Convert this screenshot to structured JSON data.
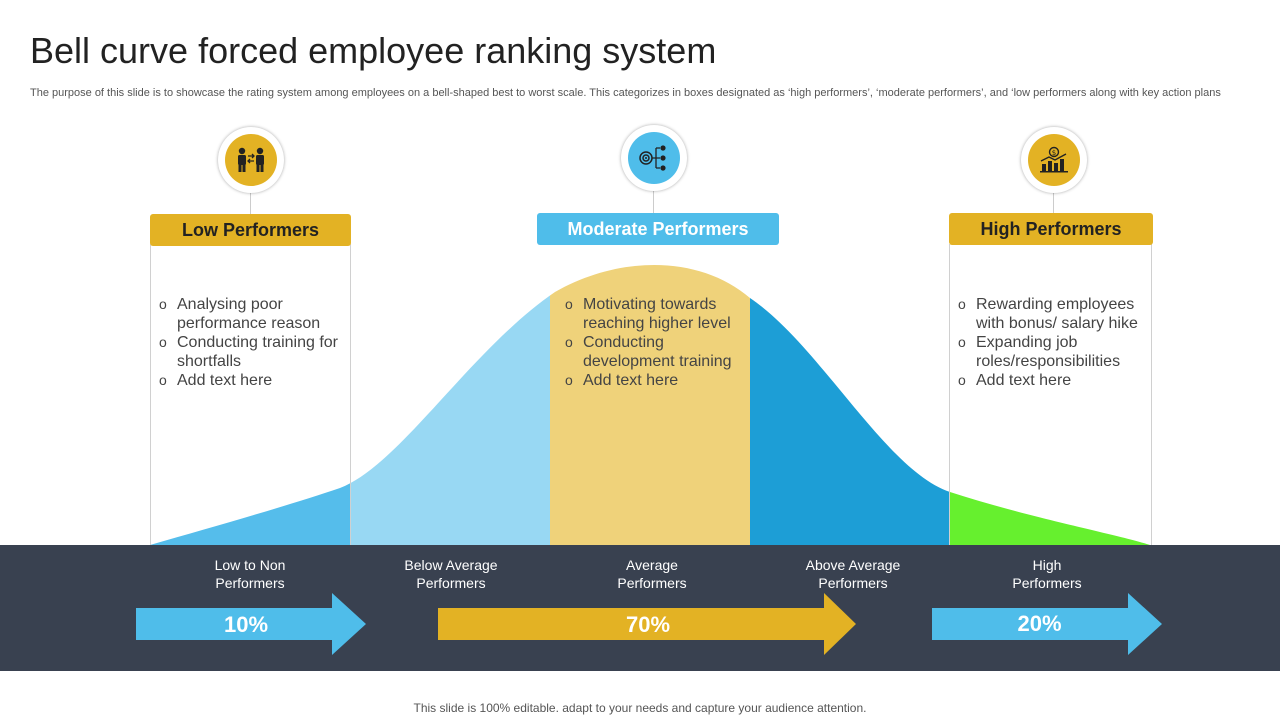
{
  "title": "Bell curve forced employee ranking system",
  "subtitle": "The purpose of this slide is to showcase the rating system among employees on a bell-shaped best to worst scale. This categorizes in boxes designated as ‘high performers’, ‘moderate performers’, and ‘low performers along with key action plans",
  "colors": {
    "gold": "#E3B224",
    "sky": "#4FBDEA",
    "dark_band": "#394150",
    "low_tail": "#55BDEB",
    "below_avg": "#98D8F3",
    "average": "#EFD27A",
    "above_avg": "#1D9ED6",
    "high_tail": "#66F02E"
  },
  "categories": [
    {
      "header": "Low Performers",
      "icon": "people-exchange-icon",
      "bullets": [
        "Analysing poor performance reason",
        "Conducting training for shortfalls",
        "Add text here"
      ]
    },
    {
      "header": "Moderate Performers",
      "icon": "target-network-icon",
      "bullets": [
        "Motivating towards reaching higher level",
        "Conducting development training",
        "Add text here"
      ]
    },
    {
      "header": "High Performers",
      "icon": "growth-chart-icon",
      "bullets": [
        "Rewarding employees with bonus/ salary hike",
        "Expanding job roles/responsibilities",
        "Add text here"
      ]
    }
  ],
  "segments": [
    "Low to Non\nPerformers",
    "Below Average\nPerformers",
    "Average\nPerformers",
    "Above Average\nPerformers",
    "High\nPerformers"
  ],
  "distribution": [
    {
      "label": "10%",
      "value": 10
    },
    {
      "label": "70%",
      "value": 70
    },
    {
      "label": "20%",
      "value": 20
    }
  ],
  "footer": "This slide is 100% editable. adapt to your needs and capture your audience attention."
}
